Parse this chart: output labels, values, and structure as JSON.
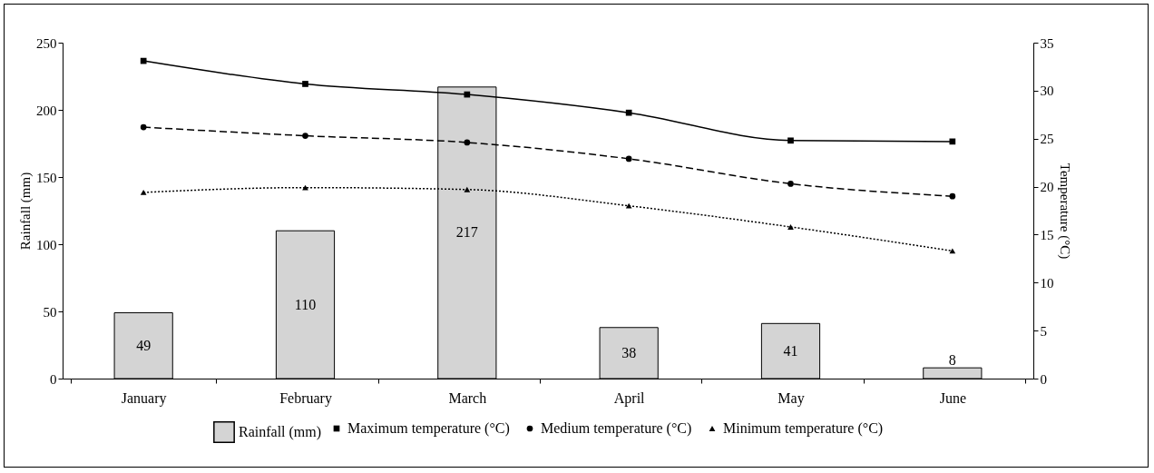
{
  "chart_data": {
    "type": "bar",
    "categories": [
      "January",
      "February",
      "March",
      "April",
      "May",
      "June"
    ],
    "ylabel": "Rainfall (mm)",
    "y2label": "Temperature (°C)",
    "ylim": [
      0,
      250
    ],
    "yticks": [
      0,
      50,
      100,
      150,
      200,
      250
    ],
    "y2lim": [
      0,
      35
    ],
    "y2ticks": [
      0,
      5,
      10,
      15,
      20,
      25,
      30,
      35
    ],
    "grid": false,
    "legend": "bottom",
    "series": [
      {
        "name": "Rainfall (mm)",
        "color": "#d4d4d4",
        "values": [
          49,
          110,
          217,
          38,
          41,
          8
        ],
        "value_labels": [
          "49",
          "110",
          "217",
          "38",
          "41",
          "8"
        ]
      },
      {
        "name": "Maximum temperature (°C)",
        "type": "line",
        "axis": "y2",
        "color": "#000000",
        "marker": "square",
        "line_style": "solid",
        "values": [
          33.1,
          30.7,
          29.6,
          27.7,
          24.8,
          24.7
        ]
      },
      {
        "name": "Medium temperature (°C)",
        "type": "line",
        "axis": "y2",
        "color": "#000000",
        "marker": "circle",
        "line_style": "dashed",
        "values": [
          26.2,
          25.3,
          24.6,
          22.9,
          20.3,
          19.0
        ]
      },
      {
        "name": "Minimum temperature (°C)",
        "type": "line",
        "axis": "y2",
        "color": "#000000",
        "marker": "triangle",
        "line_style": "dotted",
        "values": [
          19.4,
          19.9,
          19.7,
          18.0,
          15.8,
          13.3
        ]
      }
    ]
  }
}
